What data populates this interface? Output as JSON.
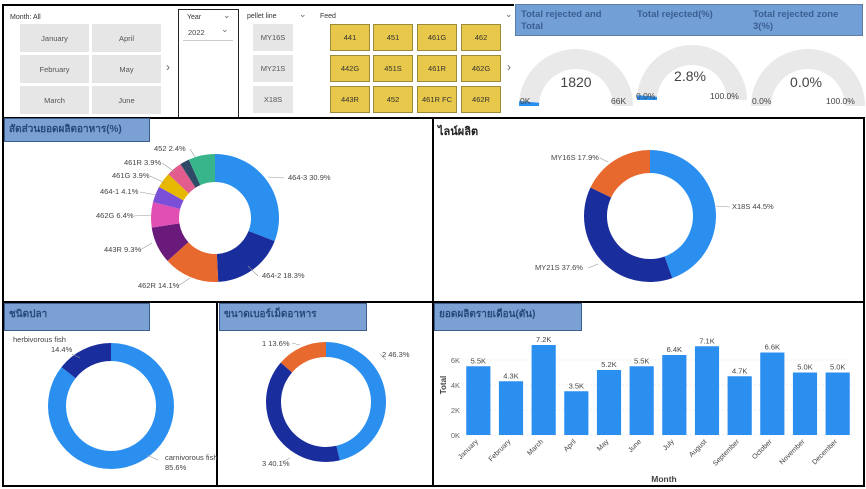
{
  "slicers": {
    "month": {
      "label": "Month: All",
      "items": [
        "January",
        "April",
        "February",
        "May",
        "March",
        "June"
      ]
    },
    "year": {
      "label": "Year",
      "selected": "2022"
    },
    "pellet_line": {
      "label": "pellet line",
      "items": [
        "MY16S",
        "MY21S",
        "X18S"
      ]
    },
    "feed": {
      "label": "Feed",
      "items": [
        "441",
        "451",
        "461G",
        "462",
        "442G",
        "451S",
        "461R",
        "462G",
        "443R",
        "452",
        "461R FC",
        "462R"
      ]
    }
  },
  "kpis": [
    {
      "title": "Total rejected and Total",
      "value": "1820",
      "min": "0K",
      "max": "66K",
      "fill": 0.028
    },
    {
      "title": "Total rejected(%)",
      "value": "2.8%",
      "min": "0.0%",
      "max": "100.0%",
      "fill": 0.028
    },
    {
      "title": "Total rejected zone 3(%)",
      "value": "0.0%",
      "min": "0.0%",
      "max": "100.0%",
      "fill": 0.0
    }
  ],
  "colors": {
    "blue": "#2b8ff0",
    "navy": "#1a2d9c",
    "orange": "#e8692e",
    "purple": "#6a1a7a",
    "pink": "#e14fb5",
    "violet": "#7b4fd8",
    "yellow": "#e6b800",
    "panel_title": "#7aa0d4"
  },
  "charts": {
    "feed_share": {
      "title": "สัดส่วนยอดผลิตอาหาร(%)",
      "chart_data": {
        "type": "pie",
        "labels": [
          "464-3",
          "464-2",
          "462R",
          "443R",
          "462G",
          "464-1",
          "461G",
          "461R",
          "452",
          "other"
        ],
        "values": [
          30.9,
          18.3,
          14.1,
          9.3,
          6.4,
          4.1,
          3.9,
          3.9,
          2.4,
          6.7
        ],
        "display": [
          "464-3 30.9%",
          "464-2 18.3%",
          "462R 14.1%",
          "443R 9.3%",
          "462G 6.4%",
          "464-1 4.1%",
          "461G 3.9%",
          "461R 3.9%",
          "452 2.4%",
          ""
        ],
        "colors": [
          "#2b8ff0",
          "#1a2d9c",
          "#e8692e",
          "#6a1a7a",
          "#e14fb5",
          "#7b4fd8",
          "#e6b800",
          "#e25d8d",
          "#2e4a66",
          "#38b58a"
        ]
      }
    },
    "production_line": {
      "title": "ไลน์ผลิต",
      "chart_data": {
        "type": "pie",
        "labels": [
          "X18S",
          "MY21S",
          "MY16S"
        ],
        "values": [
          44.5,
          37.6,
          17.9
        ],
        "display": [
          "X18S 44.5%",
          "MY21S 37.6%",
          "MY16S 17.9%"
        ],
        "colors": [
          "#2b8ff0",
          "#1a2d9c",
          "#e8692e"
        ]
      }
    },
    "fish_type": {
      "title": "ชนิดปลา",
      "chart_data": {
        "type": "pie",
        "labels": [
          "carnivorous fish",
          "herbivorous fish"
        ],
        "values": [
          85.6,
          14.4
        ],
        "display": [
          "carnivorous fish",
          "herbivorous fish"
        ],
        "percent": [
          "85.6%",
          "14.4%"
        ],
        "colors": [
          "#2b8ff0",
          "#1a2d9c"
        ]
      }
    },
    "pellet_size": {
      "title": "ขนาดเบอร์เม็ดอาหาร",
      "chart_data": {
        "type": "pie",
        "labels": [
          "2",
          "3",
          "1"
        ],
        "values": [
          46.3,
          40.1,
          13.6
        ],
        "display": [
          "2 46.3%",
          "3 40.1%",
          "1 13.6%"
        ],
        "colors": [
          "#2b8ff0",
          "#1a2d9c",
          "#e8692e"
        ]
      }
    },
    "monthly": {
      "title": "ยอดผลิตรายเดือน(ตัน)",
      "chart_data": {
        "type": "bar",
        "categories": [
          "January",
          "February",
          "March",
          "April",
          "May",
          "June",
          "July",
          "August",
          "September",
          "October",
          "November",
          "December"
        ],
        "values": [
          5.5,
          4.3,
          7.2,
          3.5,
          5.2,
          5.5,
          6.4,
          7.1,
          4.7,
          6.6,
          5.0,
          5.0
        ],
        "labels": [
          "5.5K",
          "4.3K",
          "7.2K",
          "3.5K",
          "5.2K",
          "5.5K",
          "6.4K",
          "7.1K",
          "4.7K",
          "6.6K",
          "5.0K",
          "5.0K"
        ],
        "yticks": [
          "0K",
          "2K",
          "4K",
          "6K"
        ],
        "ylim": [
          0,
          8
        ],
        "xlabel": "Month",
        "ylabel": "Total",
        "color": "#2b8ff0"
      }
    }
  }
}
